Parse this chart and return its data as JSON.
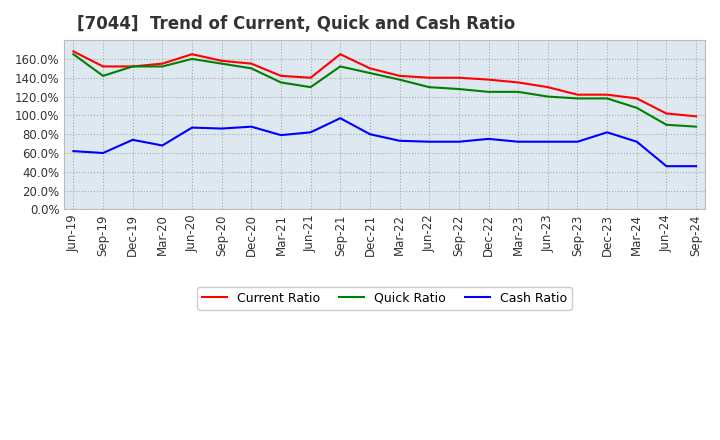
{
  "title": "[7044]  Trend of Current, Quick and Cash Ratio",
  "x_labels": [
    "Jun-19",
    "Sep-19",
    "Dec-19",
    "Mar-20",
    "Jun-20",
    "Sep-20",
    "Dec-20",
    "Mar-21",
    "Jun-21",
    "Sep-21",
    "Dec-21",
    "Mar-22",
    "Jun-22",
    "Sep-22",
    "Dec-22",
    "Mar-23",
    "Jun-23",
    "Sep-23",
    "Dec-23",
    "Mar-24",
    "Jun-24",
    "Sep-24"
  ],
  "current_ratio": [
    1.68,
    1.52,
    1.52,
    1.55,
    1.65,
    1.58,
    1.55,
    1.42,
    1.4,
    1.65,
    1.5,
    1.42,
    1.4,
    1.4,
    1.38,
    1.35,
    1.3,
    1.22,
    1.22,
    1.18,
    1.02,
    0.99
  ],
  "quick_ratio": [
    1.65,
    1.42,
    1.52,
    1.52,
    1.6,
    1.55,
    1.5,
    1.35,
    1.3,
    1.52,
    1.45,
    1.38,
    1.3,
    1.28,
    1.25,
    1.25,
    1.2,
    1.18,
    1.18,
    1.08,
    0.9,
    0.88
  ],
  "cash_ratio": [
    0.62,
    0.6,
    0.74,
    0.68,
    0.87,
    0.86,
    0.88,
    0.79,
    0.82,
    0.97,
    0.8,
    0.73,
    0.72,
    0.72,
    0.75,
    0.72,
    0.72,
    0.72,
    0.82,
    0.72,
    0.46,
    0.46
  ],
  "current_color": "#ff0000",
  "quick_color": "#008000",
  "cash_color": "#0000ff",
  "background_color": "#ffffff",
  "plot_bg_color": "#dde8f0",
  "grid_color": "#ffffff",
  "ylim": [
    0.0,
    1.8
  ],
  "yticks": [
    0.0,
    0.2,
    0.4,
    0.6,
    0.8,
    1.0,
    1.2,
    1.4,
    1.6
  ],
  "legend_labels": [
    "Current Ratio",
    "Quick Ratio",
    "Cash Ratio"
  ],
  "title_fontsize": 12,
  "tick_fontsize": 8.5
}
